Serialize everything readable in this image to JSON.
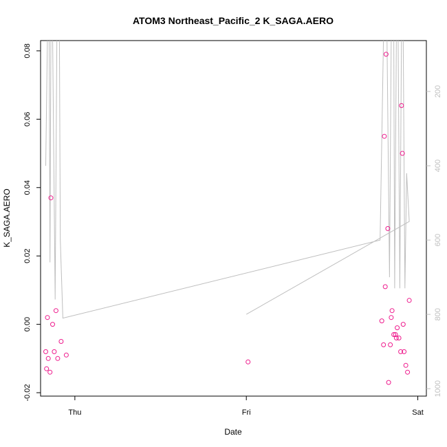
{
  "chart_data": {
    "type": "scatter",
    "title": "ATOM3 Northeast_Pacific_2 K_SAGA.AERO",
    "xlabel": "Date",
    "ylabel": "K_SAGA.AERO",
    "x_ticks": [
      {
        "pos": 0.0,
        "label": "Thu"
      },
      {
        "pos": 1.0,
        "label": "Fri"
      },
      {
        "pos": 2.0,
        "label": "Sat"
      }
    ],
    "y_ticks": [
      "-0.02",
      "0.00",
      "0.02",
      "0.04",
      "0.06",
      "0.08"
    ],
    "y_right_ticks": [
      "200",
      "400",
      "600",
      "800",
      "1000"
    ],
    "xlim": [
      -0.2,
      2.05
    ],
    "ylim": [
      -0.021,
      0.083
    ],
    "y_right_lim": [
      1020,
      63
    ],
    "points_color": "#ee1a8c",
    "line_color": "#bebebe",
    "series": [
      {
        "values": [
          [
            -0.17,
            -0.008
          ],
          [
            -0.165,
            -0.013
          ],
          [
            -0.155,
            -0.01
          ],
          [
            -0.16,
            0.002
          ],
          [
            -0.14,
            0.037
          ],
          [
            -0.13,
            0.0
          ],
          [
            -0.145,
            -0.014
          ],
          [
            -0.12,
            -0.008
          ],
          [
            -0.11,
            0.004
          ],
          [
            -0.1,
            -0.01
          ],
          [
            -0.08,
            -0.005
          ],
          [
            -0.05,
            -0.009
          ],
          [
            1.01,
            -0.011
          ],
          [
            1.79,
            0.001
          ],
          [
            1.8,
            -0.006
          ],
          [
            1.805,
            0.055
          ],
          [
            1.81,
            0.011
          ],
          [
            1.815,
            0.079
          ],
          [
            1.825,
            0.028
          ],
          [
            1.83,
            -0.017
          ],
          [
            1.84,
            -0.006
          ],
          [
            1.845,
            0.002
          ],
          [
            1.85,
            0.004
          ],
          [
            1.86,
            -0.003
          ],
          [
            1.87,
            -0.003
          ],
          [
            1.875,
            -0.004
          ],
          [
            1.88,
            -0.001
          ],
          [
            1.89,
            -0.004
          ],
          [
            1.9,
            -0.008
          ],
          [
            1.905,
            0.064
          ],
          [
            1.91,
            0.05
          ],
          [
            1.915,
            0.0
          ],
          [
            1.92,
            -0.008
          ],
          [
            1.93,
            -0.012
          ],
          [
            1.94,
            -0.014
          ],
          [
            1.95,
            0.007
          ]
        ]
      },
      {
        "values": [
          [
            -0.17,
            400
          ],
          [
            -0.16,
            50
          ],
          [
            -0.15,
            50
          ],
          [
            -0.145,
            660
          ],
          [
            -0.14,
            50
          ],
          [
            -0.13,
            50
          ],
          [
            -0.115,
            760
          ],
          [
            -0.105,
            50
          ],
          [
            -0.09,
            50
          ],
          [
            -0.085,
            600
          ],
          [
            -0.07,
            810
          ],
          [
            1.78,
            600
          ],
          [
            1.8,
            50
          ],
          [
            1.82,
            50
          ],
          [
            1.835,
            700
          ],
          [
            1.845,
            50
          ],
          [
            1.86,
            50
          ],
          [
            1.865,
            730
          ],
          [
            1.875,
            50
          ],
          [
            1.885,
            50
          ],
          [
            1.895,
            730
          ],
          [
            1.905,
            50
          ],
          [
            1.915,
            50
          ],
          [
            1.925,
            730
          ],
          [
            1.935,
            420
          ],
          [
            1.95,
            550
          ],
          [
            1.0,
            800
          ]
        ]
      }
    ]
  }
}
